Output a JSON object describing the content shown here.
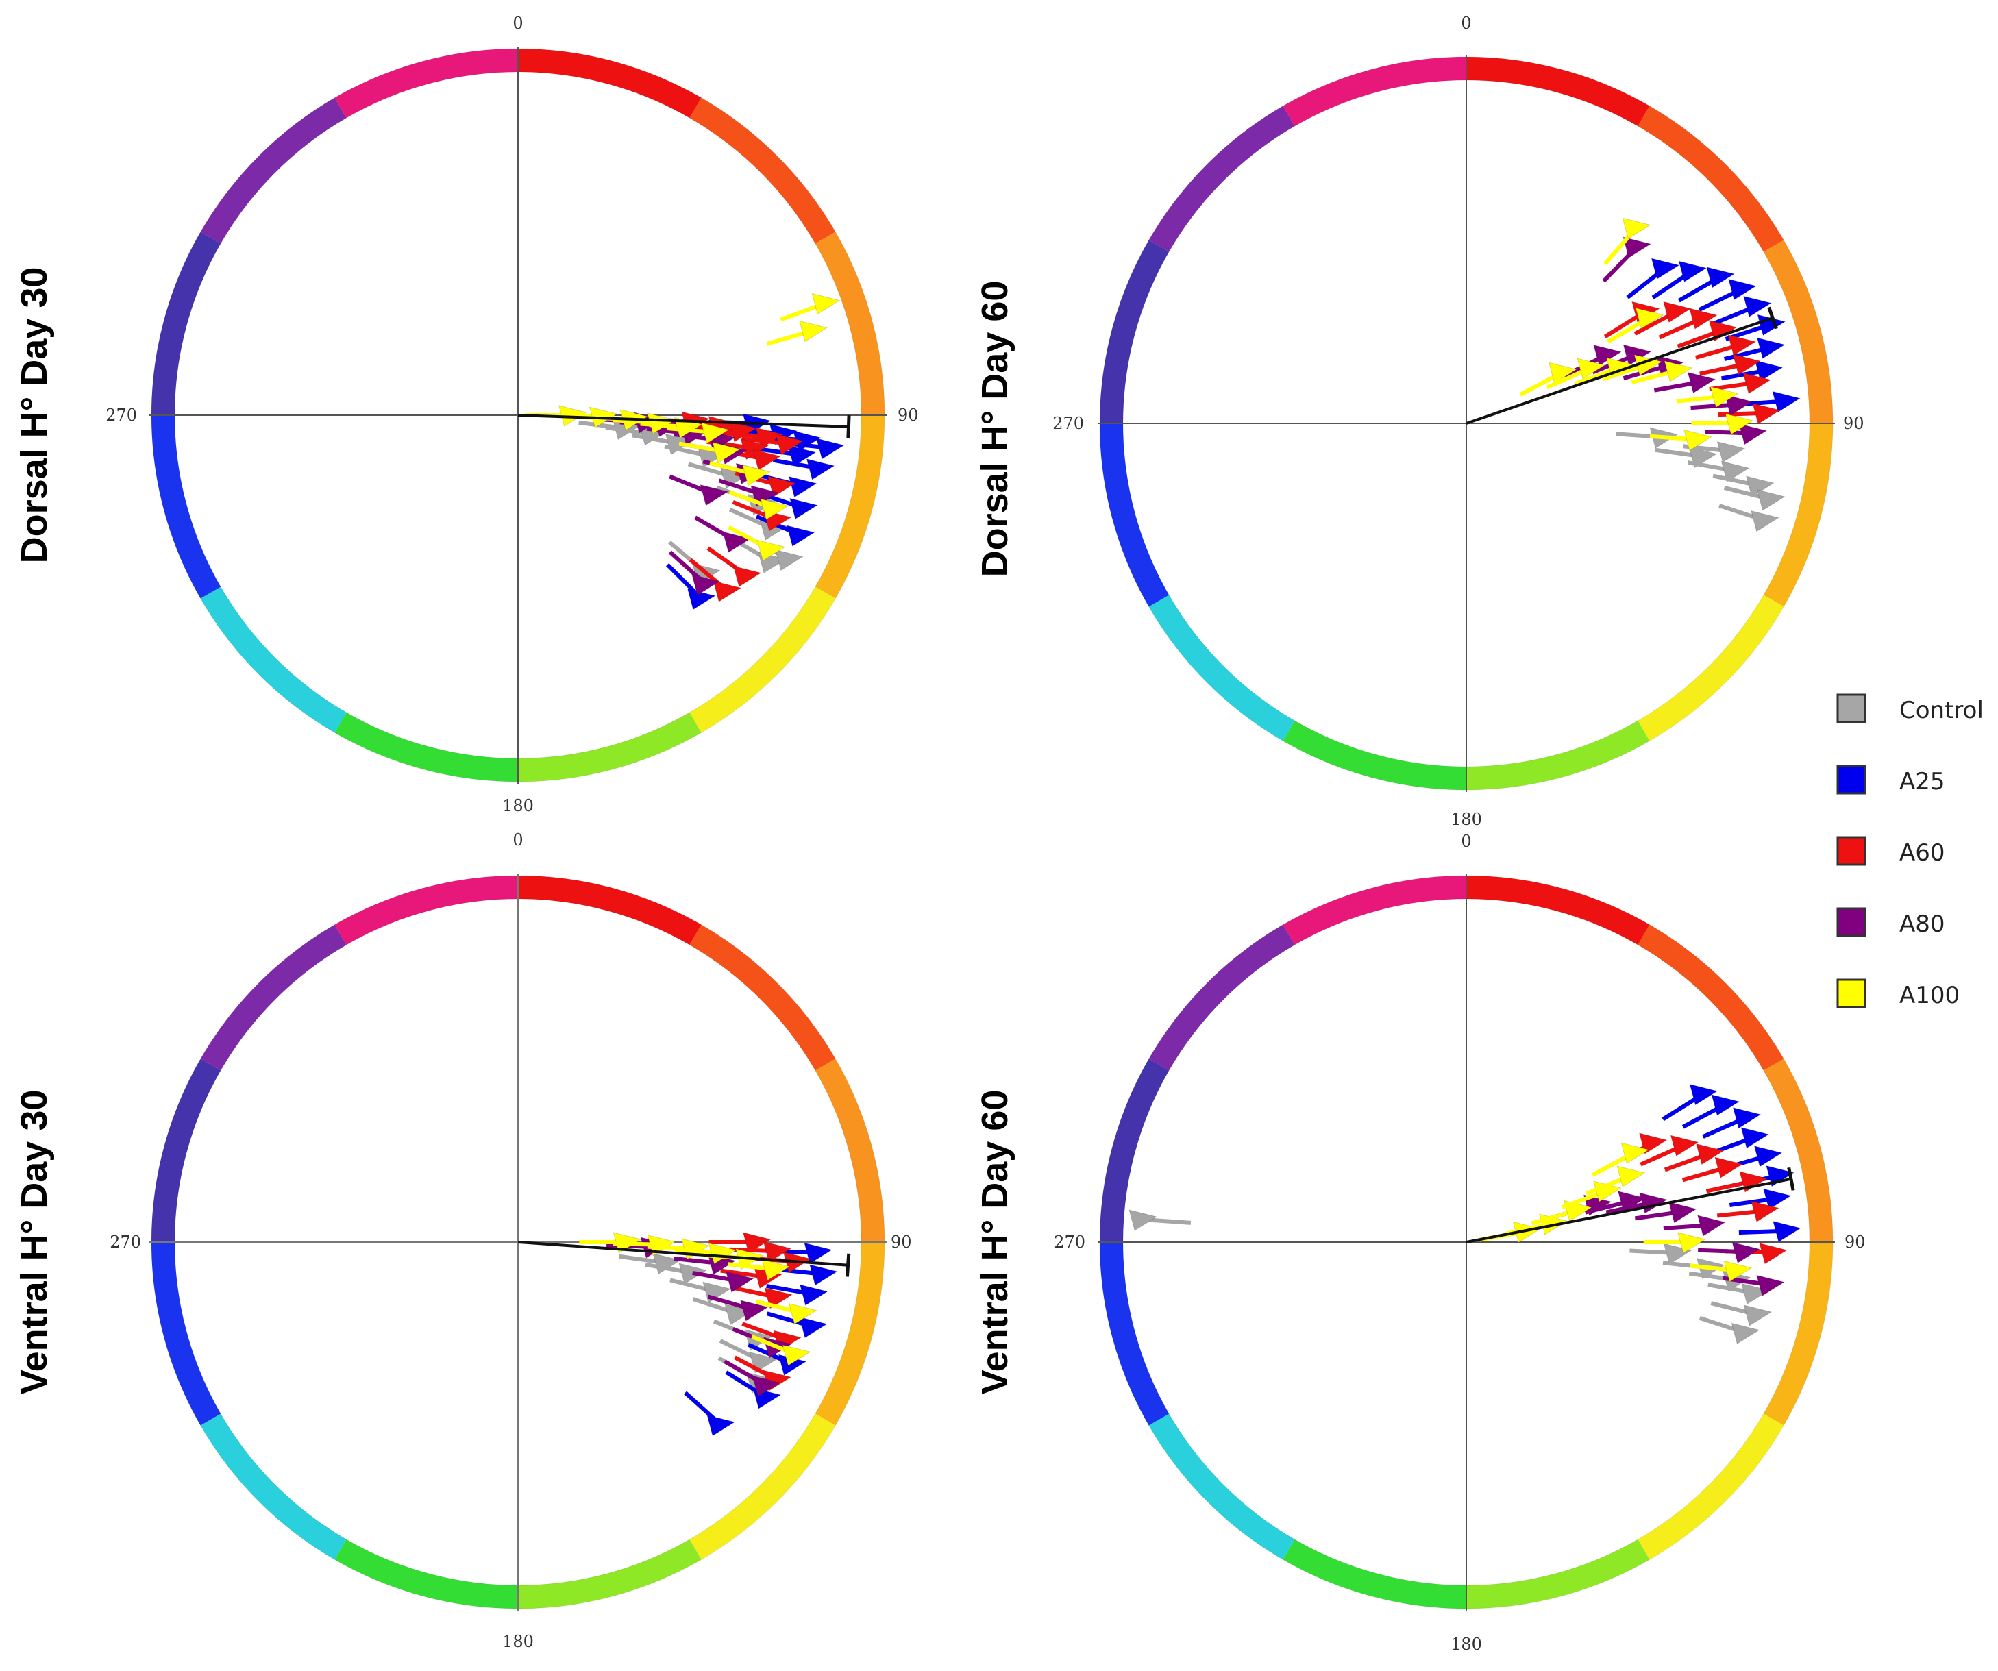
{
  "figure": {
    "legend": {
      "items": [
        {
          "label": "Control",
          "color": "#a6a6a6"
        },
        {
          "label": "A25",
          "color": "#0000ee"
        },
        {
          "label": "A60",
          "color": "#ee1111"
        },
        {
          "label": "A80",
          "color": "#800080"
        },
        {
          "label": "A100",
          "color": "#ffff00"
        }
      ]
    },
    "hue_ring": [
      {
        "start": 0,
        "end": 30,
        "color": "#ee1111"
      },
      {
        "start": 30,
        "end": 60,
        "color": "#f5521a"
      },
      {
        "start": 60,
        "end": 90,
        "color": "#f7931e"
      },
      {
        "start": 90,
        "end": 120,
        "color": "#f9b418"
      },
      {
        "start": 120,
        "end": 150,
        "color": "#f5ee1a"
      },
      {
        "start": 150,
        "end": 180,
        "color": "#8ee825"
      },
      {
        "start": 180,
        "end": 210,
        "color": "#33dd33"
      },
      {
        "start": 210,
        "end": 240,
        "color": "#2ad0dc"
      },
      {
        "start": 240,
        "end": 270,
        "color": "#1a33ee"
      },
      {
        "start": 270,
        "end": 300,
        "color": "#4433aa"
      },
      {
        "start": 300,
        "end": 330,
        "color": "#7d2aa8"
      },
      {
        "start": 330,
        "end": 360,
        "color": "#e8187a"
      }
    ]
  },
  "chart_data": [
    {
      "type": "scatter",
      "panel": "dorsal-day30",
      "title": "Dorsal  H° Day 30",
      "tick_labels": {
        "top": "0",
        "right": "90",
        "bottom": "180",
        "left": "270"
      },
      "mean_vector": {
        "angle": 92,
        "length": 0.97
      },
      "series": [
        {
          "name": "Control",
          "points": [
            [
              97,
              0.32
            ],
            [
              98,
              0.4
            ],
            [
              100,
              0.48
            ],
            [
              102,
              0.58
            ],
            [
              106,
              0.66
            ],
            [
              110,
              0.76
            ],
            [
              114,
              0.82
            ],
            [
              120,
              0.86
            ],
            [
              118,
              0.9
            ],
            [
              130,
              0.72
            ]
          ]
        },
        {
          "name": "A25",
          "points": [
            [
              92,
              0.7
            ],
            [
              94,
              0.78
            ],
            [
              95,
              0.85
            ],
            [
              96,
              0.92
            ],
            [
              98,
              0.84
            ],
            [
              100,
              0.9
            ],
            [
              104,
              0.86
            ],
            [
              108,
              0.88
            ],
            [
              113,
              0.9
            ],
            [
              135,
              0.76
            ]
          ]
        },
        {
          "name": "A60",
          "points": [
            [
              92,
              0.52
            ],
            [
              93,
              0.6
            ],
            [
              94,
              0.66
            ],
            [
              95,
              0.74
            ],
            [
              96,
              0.8
            ],
            [
              98,
              0.7
            ],
            [
              100,
              0.74
            ],
            [
              105,
              0.8
            ],
            [
              112,
              0.82
            ],
            [
              125,
              0.82
            ],
            [
              130,
              0.8
            ]
          ]
        },
        {
          "name": "A80",
          "points": [
            [
              93,
              0.38
            ],
            [
              94,
              0.44
            ],
            [
              96,
              0.52
            ],
            [
              97,
              0.6
            ],
            [
              100,
              0.64
            ],
            [
              104,
              0.7
            ],
            [
              108,
              0.76
            ],
            [
              112,
              0.62
            ],
            [
              120,
              0.74
            ],
            [
              132,
              0.74
            ]
          ]
        },
        {
          "name": "A100",
          "points": [
            [
              90,
              0.16
            ],
            [
              91,
              0.25
            ],
            [
              92,
              0.34
            ],
            [
              93,
              0.42
            ],
            [
              94,
              0.5
            ],
            [
              95,
              0.58
            ],
            [
              100,
              0.62
            ],
            [
              104,
              0.72
            ],
            [
              110,
              0.8
            ],
            [
              118,
              0.84
            ],
            [
              70,
              0.96
            ],
            [
              74,
              0.9
            ]
          ]
        }
      ]
    },
    {
      "type": "scatter",
      "panel": "dorsal-day60",
      "title": "Dorsal  H° Day 60",
      "tick_labels": {
        "top": "0",
        "right": "90",
        "bottom": "180",
        "left": "270"
      },
      "mean_vector": {
        "angle": 71,
        "length": 0.95
      },
      "series": [
        {
          "name": "Control",
          "points": [
            [
              94,
              0.58
            ],
            [
              98,
              0.7
            ],
            [
              100,
              0.8
            ],
            [
              102,
              0.88
            ],
            [
              104,
              0.92
            ],
            [
              96,
              0.78
            ],
            [
              108,
              0.92
            ]
          ]
        },
        {
          "name": "A25",
          "points": [
            [
              52,
              0.74
            ],
            [
              56,
              0.8
            ],
            [
              60,
              0.86
            ],
            [
              64,
              0.9
            ],
            [
              68,
              0.92
            ],
            [
              72,
              0.94
            ],
            [
              76,
              0.92
            ],
            [
              80,
              0.9
            ],
            [
              86,
              0.94
            ]
          ]
        },
        {
          "name": "A60",
          "points": [
            [
              58,
              0.62
            ],
            [
              62,
              0.7
            ],
            [
              66,
              0.76
            ],
            [
              70,
              0.8
            ],
            [
              74,
              0.84
            ],
            [
              78,
              0.84
            ],
            [
              82,
              0.86
            ],
            [
              88,
              0.88
            ]
          ]
        },
        {
          "name": "A80",
          "points": [
            [
              44,
              0.72
            ],
            [
              64,
              0.46
            ],
            [
              68,
              0.54
            ],
            [
              74,
              0.62
            ],
            [
              80,
              0.7
            ],
            [
              86,
              0.8
            ],
            [
              92,
              0.84
            ]
          ]
        },
        {
          "name": "A100",
          "points": [
            [
              41,
              0.76
            ],
            [
              62,
              0.32
            ],
            [
              66,
              0.4
            ],
            [
              70,
              0.48
            ],
            [
              72,
              0.56
            ],
            [
              76,
              0.64
            ],
            [
              60,
              0.62
            ],
            [
              84,
              0.76
            ],
            [
              90,
              0.8
            ],
            [
              94,
              0.68
            ]
          ]
        }
      ]
    },
    {
      "type": "scatter",
      "panel": "ventral-day30",
      "title": "Ventral  H° Day 30",
      "tick_labels": {
        "top": "0",
        "right": "90",
        "bottom": "180",
        "left": "270"
      },
      "mean_vector": {
        "angle": 94,
        "length": 0.97
      },
      "series": [
        {
          "name": "Control",
          "points": [
            [
              98,
              0.44
            ],
            [
              100,
              0.52
            ],
            [
              104,
              0.6
            ],
            [
              108,
              0.68
            ],
            [
              112,
              0.76
            ],
            [
              116,
              0.8
            ],
            [
              120,
              0.82
            ]
          ]
        },
        {
          "name": "A25",
          "points": [
            [
              92,
              0.88
            ],
            [
              96,
              0.9
            ],
            [
              100,
              0.88
            ],
            [
              106,
              0.9
            ],
            [
              114,
              0.88
            ],
            [
              122,
              0.86
            ],
            [
              132,
              0.8
            ]
          ]
        },
        {
          "name": "A60",
          "points": [
            [
              90,
              0.7
            ],
            [
              92,
              0.76
            ],
            [
              94,
              0.82
            ],
            [
              98,
              0.74
            ],
            [
              102,
              0.78
            ],
            [
              110,
              0.84
            ],
            [
              118,
              0.86
            ]
          ]
        },
        {
          "name": "A80",
          "points": [
            [
              92,
              0.4
            ],
            [
              96,
              0.6
            ],
            [
              100,
              0.66
            ],
            [
              106,
              0.72
            ],
            [
              112,
              0.82
            ],
            [
              120,
              0.84
            ]
          ]
        },
        {
          "name": "A100",
          "points": [
            [
              90,
              0.32
            ],
            [
              91,
              0.42
            ],
            [
              92,
              0.52
            ],
            [
              93,
              0.6
            ],
            [
              94,
              0.68
            ],
            [
              96,
              0.76
            ],
            [
              104,
              0.86
            ],
            [
              112,
              0.88
            ]
          ]
        }
      ]
    },
    {
      "type": "scatter",
      "panel": "ventral-day60",
      "title": "Ventral  H° Day 60",
      "tick_labels": {
        "top": "0",
        "right": "90",
        "bottom": "180",
        "left": "270"
      },
      "mean_vector": {
        "angle": 79,
        "length": 0.97
      },
      "series": [
        {
          "name": "Control",
          "points": [
            [
              93,
              0.62
            ],
            [
              96,
              0.72
            ],
            [
              98,
              0.8
            ],
            [
              100,
              0.86
            ],
            [
              104,
              0.88
            ],
            [
              108,
              0.86
            ],
            [
              274,
              0.95
            ]
          ]
        },
        {
          "name": "A25",
          "points": [
            [
              58,
              0.82
            ],
            [
              62,
              0.86
            ],
            [
              66,
              0.9
            ],
            [
              70,
              0.9
            ],
            [
              74,
              0.92
            ],
            [
              78,
              0.94
            ],
            [
              82,
              0.92
            ],
            [
              88,
              0.94
            ]
          ]
        },
        {
          "name": "A60",
          "points": [
            [
              62,
              0.62
            ],
            [
              66,
              0.7
            ],
            [
              70,
              0.76
            ],
            [
              74,
              0.8
            ],
            [
              78,
              0.86
            ],
            [
              84,
              0.88
            ],
            [
              92,
              0.9
            ]
          ]
        },
        {
          "name": "A80",
          "points": [
            [
              74,
              0.4
            ],
            [
              76,
              0.5
            ],
            [
              78,
              0.56
            ],
            [
              82,
              0.64
            ],
            [
              86,
              0.72
            ],
            [
              92,
              0.82
            ],
            [
              98,
              0.9
            ]
          ]
        },
        {
          "name": "A100",
          "points": [
            [
              80,
              0.18
            ],
            [
              78,
              0.26
            ],
            [
              74,
              0.34
            ],
            [
              70,
              0.44
            ],
            [
              68,
              0.52
            ],
            [
              62,
              0.56
            ],
            [
              90,
              0.66
            ],
            [
              96,
              0.8
            ]
          ]
        }
      ]
    }
  ]
}
